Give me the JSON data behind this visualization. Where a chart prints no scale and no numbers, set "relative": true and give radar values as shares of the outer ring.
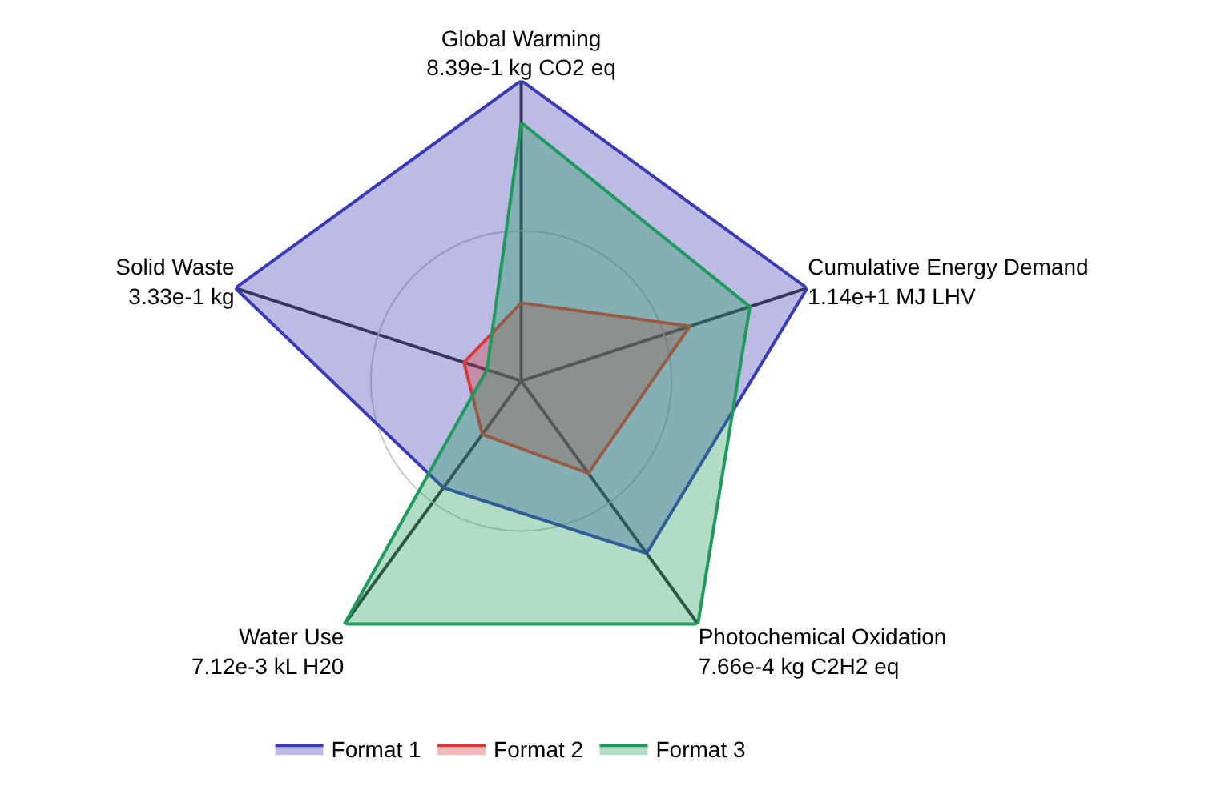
{
  "chart_data": {
    "type": "radar",
    "relative": true,
    "grid": true,
    "legend": "bottom",
    "marker": "none",
    "categories": [
      "Global Warming\n8.39e-1 kg CO2 eq",
      "Cumulative Energy Demand\n1.14e+1 MJ LHV",
      "Photochemical Oxidation\n7.66e-4 kg C2H2 eq",
      "Water Use\n7.12e-3 kL H20",
      "Solid Waste\n3.33e-1 kg"
    ],
    "series": [
      {
        "name": "Format 1",
        "color": "#3b3bb5",
        "values": [
          1.0,
          1.0,
          0.71,
          0.44,
          1.0
        ]
      },
      {
        "name": "Format 2",
        "color": "#d83a3a",
        "values": [
          0.26,
          0.59,
          0.38,
          0.22,
          0.2
        ]
      },
      {
        "name": "Format 3",
        "color": "#1f9a5c",
        "values": [
          0.86,
          0.8,
          1.0,
          1.0,
          0.12
        ]
      }
    ]
  }
}
